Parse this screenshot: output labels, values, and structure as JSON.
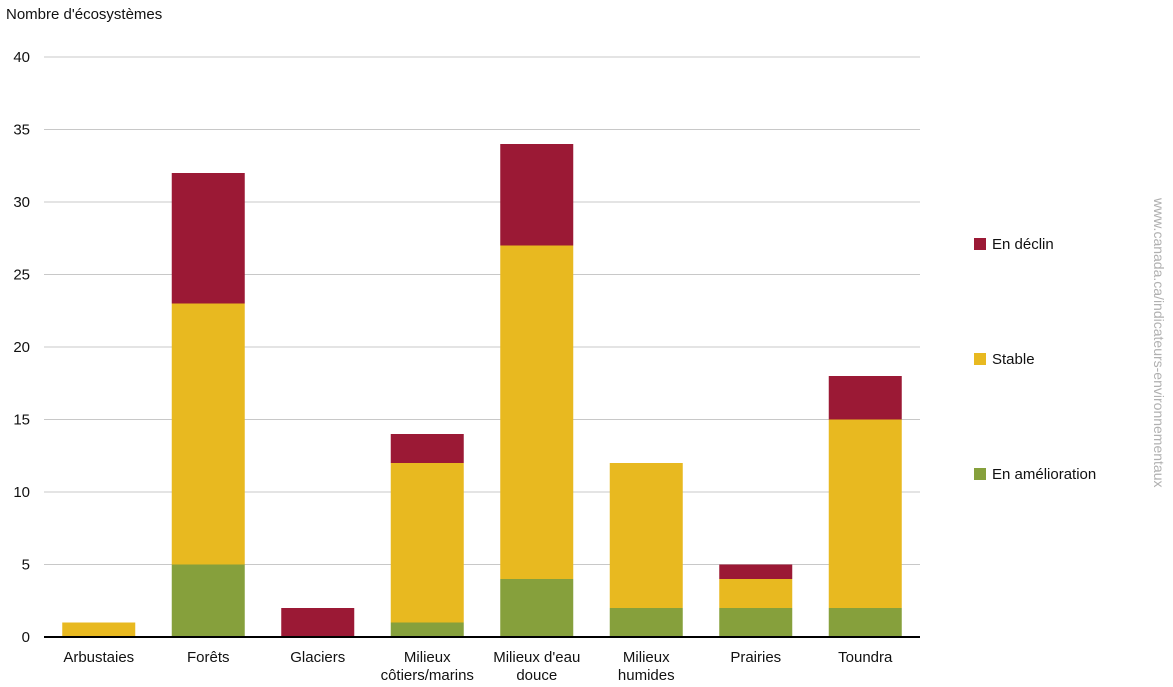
{
  "chart_data": {
    "type": "bar",
    "stacked": true,
    "ylabel": "Nombre d'écosystèmes",
    "ylim": [
      0,
      40
    ],
    "yticks": [
      0,
      5,
      10,
      15,
      20,
      25,
      30,
      35,
      40
    ],
    "grid": true,
    "legend_position": "right",
    "categories": [
      [
        "Arbustaies"
      ],
      [
        "Forêts"
      ],
      [
        "Glaciers"
      ],
      [
        "Milieux",
        "côtiers/marins"
      ],
      [
        "Milieux d'eau",
        "douce"
      ],
      [
        "Milieux",
        "humides"
      ],
      [
        "Prairies"
      ],
      [
        "Toundra"
      ]
    ],
    "series": [
      {
        "name": "En amélioration",
        "color": "#86a03c",
        "values": [
          0,
          5,
          0,
          1,
          4,
          2,
          2,
          2
        ]
      },
      {
        "name": "Stable",
        "color": "#e8b920",
        "values": [
          1,
          18,
          0,
          11,
          23,
          10,
          2,
          13
        ]
      },
      {
        "name": "En déclin",
        "color": "#9b1935",
        "values": [
          0,
          9,
          2,
          2,
          7,
          0,
          1,
          3
        ]
      }
    ],
    "legend_order": [
      "En déclin",
      "Stable",
      "En amélioration"
    ],
    "source_text": "www.canada.ca/indicateurs-environnementaux"
  }
}
